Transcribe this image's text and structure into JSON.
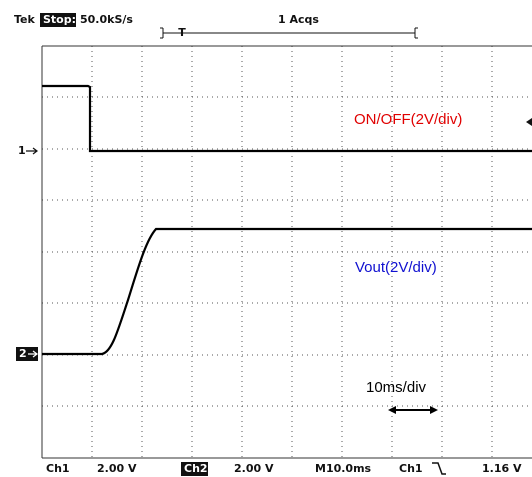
{
  "header": {
    "brand": "Tek",
    "state": "Stop:",
    "sample_rate": "50.0kS/s",
    "acquisitions": "1 Acqs",
    "trigger_marker": "T"
  },
  "channels": [
    {
      "marker": "1",
      "label": "ON/OFF(2V/div)"
    },
    {
      "marker": "2",
      "label": "Vout(2V/div)"
    }
  ],
  "time_scale_note": "10ms/div",
  "status_bar": {
    "ch1": "Ch1",
    "ch1_scale": "2.00 V",
    "ch2": "Ch2",
    "ch2_scale": "2.00 V",
    "timebase": "M10.0ms",
    "trigger_source": "Ch1",
    "trigger_level": "1.16 V"
  }
}
